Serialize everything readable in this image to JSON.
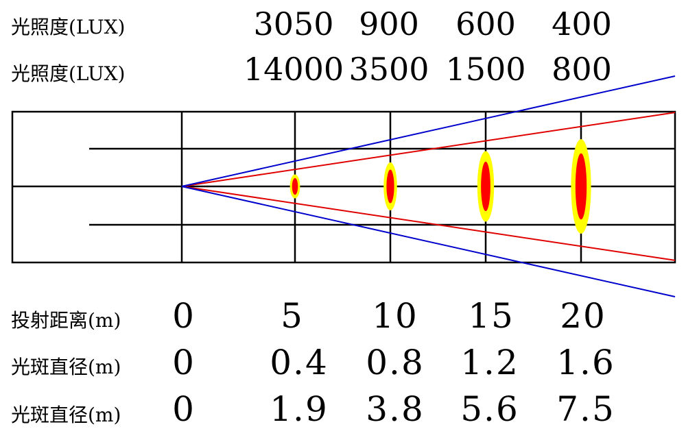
{
  "illuminance": {
    "rows": [
      {
        "label": "光照度(LUX)",
        "values": [
          "3050",
          "900",
          "600",
          "400"
        ]
      },
      {
        "label": "光照度(LUX)",
        "values": [
          "14000",
          "3500",
          "1500",
          "800"
        ]
      }
    ]
  },
  "distance": {
    "label": "投射距离(m)",
    "values": [
      "0",
      "5",
      "10",
      "15",
      "20"
    ]
  },
  "spot_diameter": {
    "rows": [
      {
        "label": "光斑直径(m)",
        "values": [
          "0",
          "0.4",
          "0.8",
          "1.2",
          "1.6"
        ]
      },
      {
        "label": "光斑直径(m)",
        "values": [
          "0",
          "1.9",
          "3.8",
          "5.6",
          "7.5"
        ]
      }
    ]
  },
  "colors": {
    "narrow_beam": "#e00000",
    "wide_beam": "#0000cc",
    "spot_core": "#ff0000",
    "spot_halo": "#ffff00",
    "grid": "#000000"
  }
}
